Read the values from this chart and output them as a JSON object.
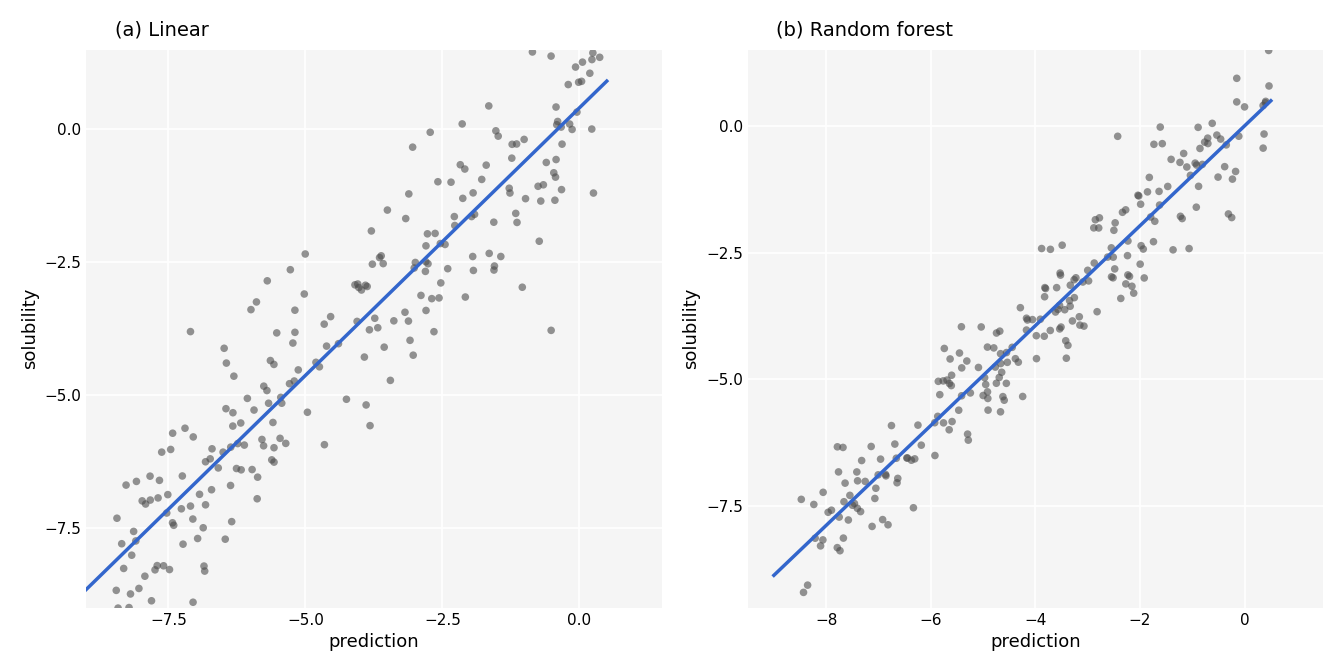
{
  "title_a": "(a) Linear",
  "title_b": "(b) Random forest",
  "xlabel": "prediction",
  "ylabel": "solubility",
  "background_color": "#f5f5f5",
  "grid_color": "#ffffff",
  "scatter_color": "#4d4d4d",
  "scatter_alpha": 0.6,
  "scatter_size": 30,
  "line_color": "#3366cc",
  "line_width": 2.5,
  "panel_a": {
    "xlim": [
      -9.0,
      1.5
    ],
    "ylim": [
      -9.0,
      1.5
    ],
    "xticks": [
      -7.5,
      -5.0,
      -2.5,
      0.0
    ],
    "yticks": [
      0.0,
      -2.5,
      -5.0,
      -7.5
    ],
    "line_x": [
      -9.0,
      0.5
    ],
    "line_y": [
      -8.5,
      0.5
    ],
    "seed": 42,
    "n_points": 228
  },
  "panel_b": {
    "xlim": [
      -9.5,
      1.5
    ],
    "ylim": [
      -9.5,
      1.5
    ],
    "xticks": [
      -8,
      -6,
      -4,
      -2,
      0
    ],
    "yticks": [
      0.0,
      -2.5,
      -5.0,
      -7.5
    ],
    "line_x": [
      -9.0,
      0.5
    ],
    "line_y": [
      -8.3,
      0.5
    ],
    "seed": 123,
    "n_points": 228
  }
}
